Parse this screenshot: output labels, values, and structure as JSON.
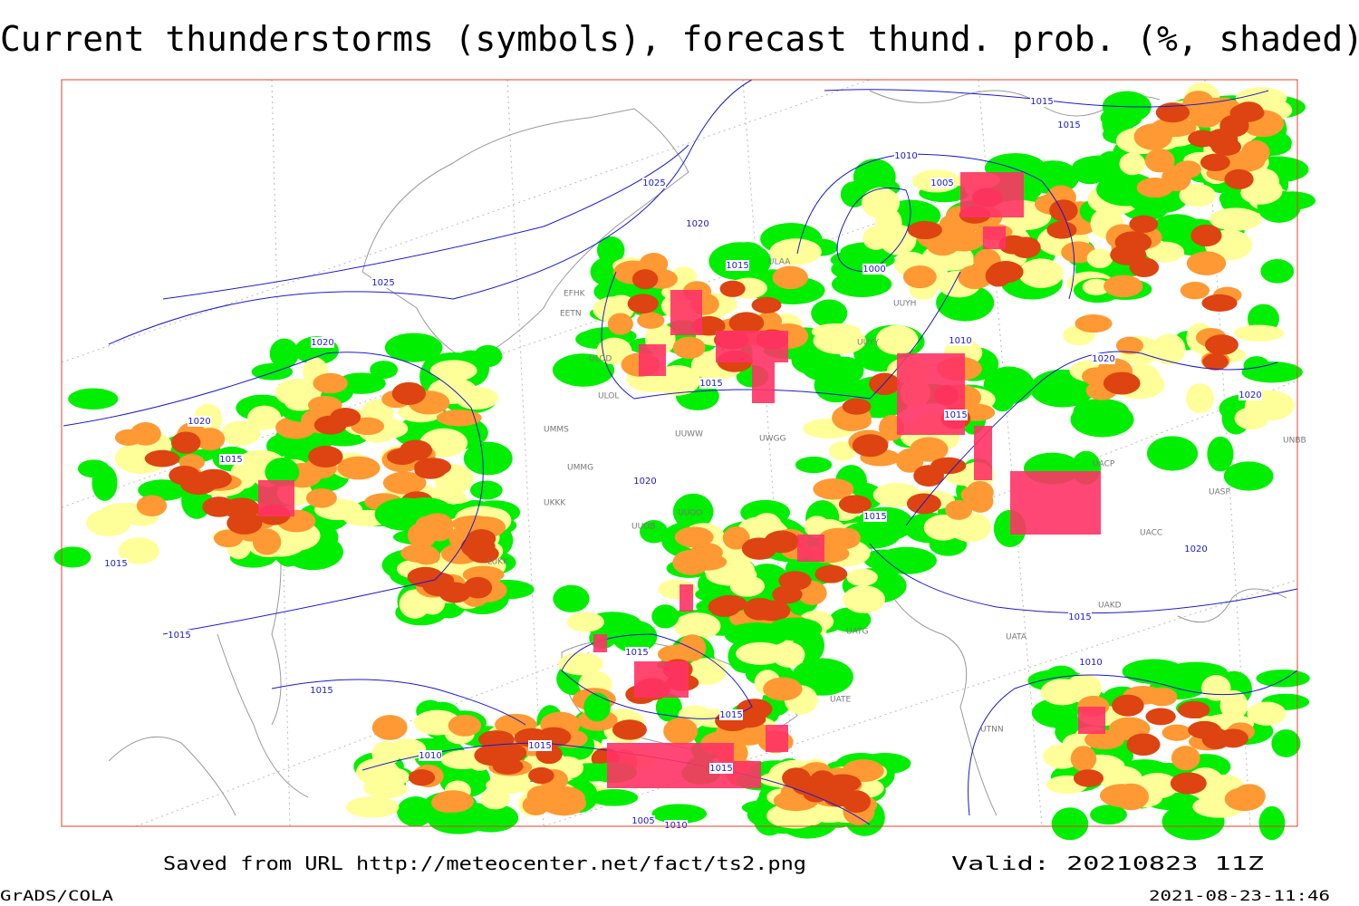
{
  "header": {
    "title": "Current thunderstorms (symbols), forecast thund. prob. (%, shaded)"
  },
  "footer": {
    "source": "Saved from URL http://meteocenter.net/fact/ts2.png",
    "valid": "Valid: 20210823 11Z",
    "software": "GrADS/COLA",
    "timestamp": "2021-08-23-11:46"
  },
  "map": {
    "isobar_labels": [
      "1015",
      "1015",
      "1010",
      "1005",
      "1025",
      "1020",
      "1015",
      "1000",
      "1025",
      "1020",
      "1010",
      "1015",
      "1020",
      "1020",
      "1020",
      "1015",
      "1015",
      "1020",
      "1015",
      "1015",
      "1020",
      "1015",
      "1015",
      "1015",
      "1010",
      "1015",
      "1015",
      "1010",
      "1015",
      "1015",
      "1005",
      "1010"
    ],
    "stations": [
      "ULAA",
      "UUYH",
      "UUYY",
      "ULOL",
      "UMMS",
      "UUWW",
      "UWGG",
      "UKKK",
      "UUOO",
      "UACC",
      "UASP",
      "UATG",
      "UATE",
      "UTNN",
      "LUKK",
      "UACP",
      "UNBB",
      "UAKD",
      "UATA",
      "ULOD",
      "EFHK",
      "EETN",
      "UMMG",
      "UUOB"
    ]
  }
}
